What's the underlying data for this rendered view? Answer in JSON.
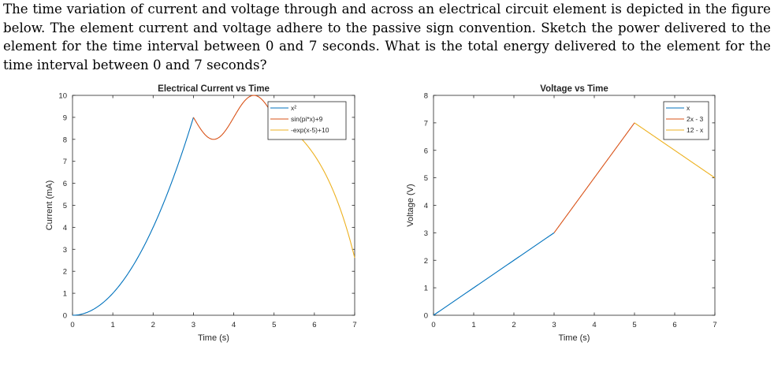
{
  "question": {
    "text": "The time variation of current and voltage through and across an electrical circuit element is depicted in the figure below. The element current and voltage adhere to the passive sign convention. Sketch the power delivered to the element for the time interval between 0 and 7 seconds. What is the total energy delivered to the element for the time interval between 0 and 7 seconds?"
  },
  "chart_data": [
    {
      "type": "line",
      "title": "Electrical Current vs Time",
      "xlabel": "Time (s)",
      "ylabel": "Current (mA)",
      "xlim": [
        0,
        7
      ],
      "ylim": [
        0,
        10
      ],
      "xticks": [
        0,
        1,
        2,
        3,
        4,
        5,
        6,
        7
      ],
      "yticks": [
        0,
        1,
        2,
        3,
        4,
        5,
        6,
        7,
        8,
        9,
        10
      ],
      "grid": false,
      "legend_position": "top-right",
      "series": [
        {
          "name": "x²",
          "color": "#0072BD",
          "x_range": [
            0,
            3
          ],
          "x": [
            0,
            0.5,
            1,
            1.5,
            2,
            2.5,
            3
          ],
          "y": [
            0,
            0.25,
            1,
            2.25,
            4,
            6.25,
            9
          ]
        },
        {
          "name": "sin(pi*x)+9",
          "color": "#D95319",
          "x_range": [
            3,
            5
          ],
          "x": [
            3,
            3.5,
            4,
            4.5,
            5
          ],
          "y": [
            9,
            8,
            9,
            10,
            9
          ]
        },
        {
          "name": "-exp(x-5)+10",
          "color": "#EDB120",
          "x_range": [
            5,
            7
          ],
          "x": [
            5,
            5.5,
            6,
            6.5,
            7
          ],
          "y": [
            9,
            8.35,
            7.28,
            5.52,
            2.61
          ]
        }
      ]
    },
    {
      "type": "line",
      "title": "Voltage vs Time",
      "xlabel": "Time (s)",
      "ylabel": "Voltage (V)",
      "xlim": [
        0,
        7
      ],
      "ylim": [
        0,
        8
      ],
      "xticks": [
        0,
        1,
        2,
        3,
        4,
        5,
        6,
        7
      ],
      "yticks": [
        0,
        1,
        2,
        3,
        4,
        5,
        6,
        7,
        8
      ],
      "grid": false,
      "legend_position": "top-right",
      "series": [
        {
          "name": "x",
          "color": "#0072BD",
          "x_range": [
            0,
            3
          ],
          "x": [
            0,
            3
          ],
          "y": [
            0,
            3
          ]
        },
        {
          "name": "2x - 3",
          "color": "#D95319",
          "x_range": [
            3,
            5
          ],
          "x": [
            3,
            5
          ],
          "y": [
            3,
            7
          ]
        },
        {
          "name": "12 - x",
          "color": "#EDB120",
          "x_range": [
            5,
            7
          ],
          "x": [
            5,
            7
          ],
          "y": [
            7,
            5
          ]
        }
      ]
    }
  ]
}
